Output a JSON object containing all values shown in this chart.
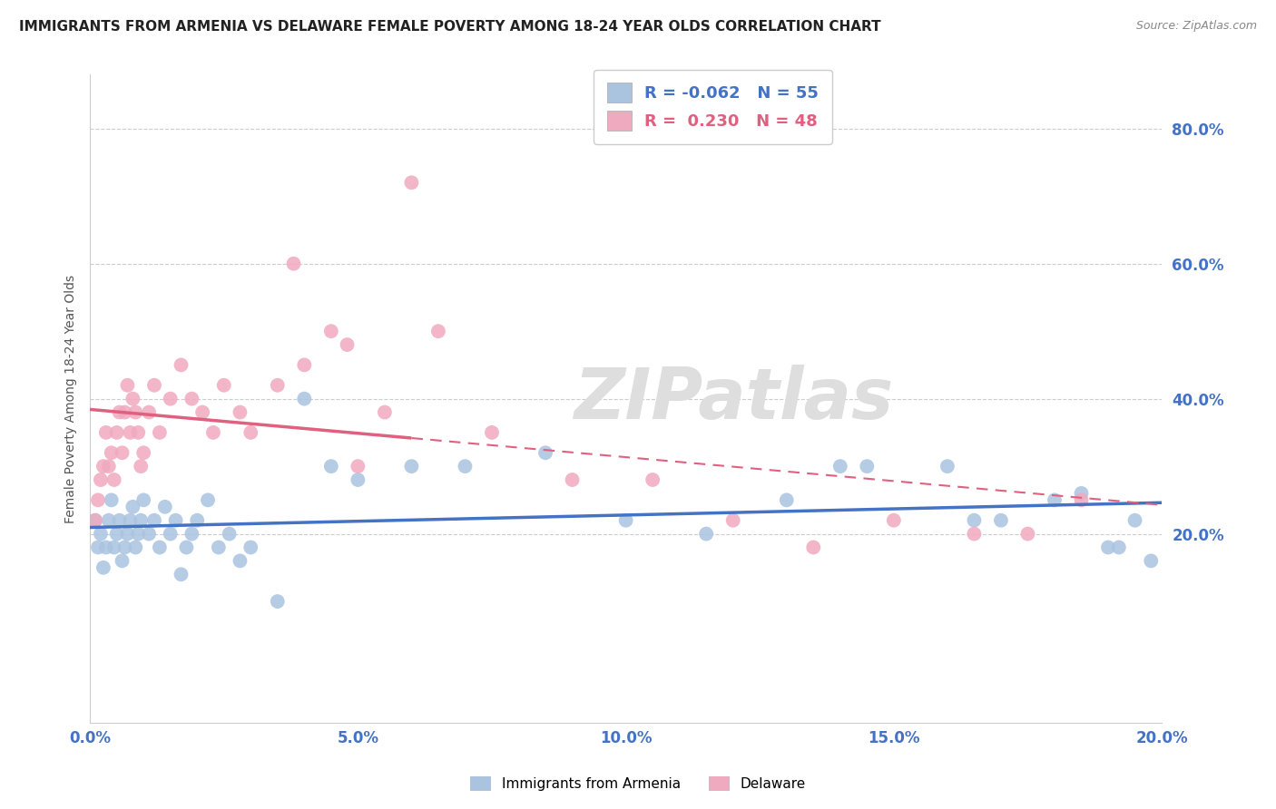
{
  "title": "IMMIGRANTS FROM ARMENIA VS DELAWARE FEMALE POVERTY AMONG 18-24 YEAR OLDS CORRELATION CHART",
  "source": "Source: ZipAtlas.com",
  "ylabel": "Female Poverty Among 18-24 Year Olds",
  "x_tick_labels": [
    "0.0%",
    "5.0%",
    "10.0%",
    "15.0%",
    "20.0%"
  ],
  "x_tick_positions": [
    0.0,
    5.0,
    10.0,
    15.0,
    20.0
  ],
  "y_tick_labels": [
    "20.0%",
    "40.0%",
    "60.0%",
    "80.0%"
  ],
  "y_tick_positions": [
    20.0,
    40.0,
    60.0,
    80.0
  ],
  "xlim": [
    0.0,
    20.0
  ],
  "ylim": [
    -8.0,
    88.0
  ],
  "legend1_label": "Immigrants from Armenia",
  "legend2_label": "Delaware",
  "R1": -0.062,
  "N1": 55,
  "R2": 0.23,
  "N2": 48,
  "blue_color": "#aac4e0",
  "pink_color": "#f0aabf",
  "blue_line_color": "#4472c4",
  "pink_line_color": "#e06080",
  "watermark": "ZIPatlas",
  "blue_scatter_x": [
    0.1,
    0.15,
    0.2,
    0.25,
    0.3,
    0.35,
    0.4,
    0.45,
    0.5,
    0.55,
    0.6,
    0.65,
    0.7,
    0.75,
    0.8,
    0.85,
    0.9,
    0.95,
    1.0,
    1.1,
    1.2,
    1.3,
    1.4,
    1.5,
    1.6,
    1.7,
    1.8,
    1.9,
    2.0,
    2.2,
    2.4,
    2.6,
    2.8,
    3.0,
    3.5,
    4.0,
    4.5,
    5.0,
    6.0,
    7.0,
    8.5,
    10.0,
    11.5,
    13.0,
    14.5,
    16.0,
    17.0,
    18.0,
    19.0,
    19.5,
    19.8,
    14.0,
    16.5,
    18.5,
    19.2
  ],
  "blue_scatter_y": [
    22,
    18,
    20,
    15,
    18,
    22,
    25,
    18,
    20,
    22,
    16,
    18,
    20,
    22,
    24,
    18,
    20,
    22,
    25,
    20,
    22,
    18,
    24,
    20,
    22,
    14,
    18,
    20,
    22,
    25,
    18,
    20,
    16,
    18,
    10,
    40,
    30,
    28,
    30,
    30,
    32,
    22,
    20,
    25,
    30,
    30,
    22,
    25,
    18,
    22,
    16,
    30,
    22,
    26,
    18
  ],
  "pink_scatter_x": [
    0.1,
    0.15,
    0.2,
    0.25,
    0.3,
    0.35,
    0.4,
    0.45,
    0.5,
    0.55,
    0.6,
    0.65,
    0.7,
    0.75,
    0.8,
    0.85,
    0.9,
    0.95,
    1.0,
    1.1,
    1.2,
    1.3,
    1.5,
    1.7,
    1.9,
    2.1,
    2.3,
    2.5,
    2.8,
    3.0,
    3.5,
    4.0,
    4.5,
    5.0,
    5.5,
    6.5,
    7.5,
    9.0,
    10.5,
    12.0,
    13.5,
    15.0,
    16.5,
    17.5,
    18.5,
    4.8,
    3.8,
    6.0
  ],
  "pink_scatter_y": [
    22,
    25,
    28,
    30,
    35,
    30,
    32,
    28,
    35,
    38,
    32,
    38,
    42,
    35,
    40,
    38,
    35,
    30,
    32,
    38,
    42,
    35,
    40,
    45,
    40,
    38,
    35,
    42,
    38,
    35,
    42,
    45,
    50,
    30,
    38,
    50,
    35,
    28,
    28,
    22,
    18,
    22,
    20,
    20,
    25,
    48,
    60,
    72
  ]
}
